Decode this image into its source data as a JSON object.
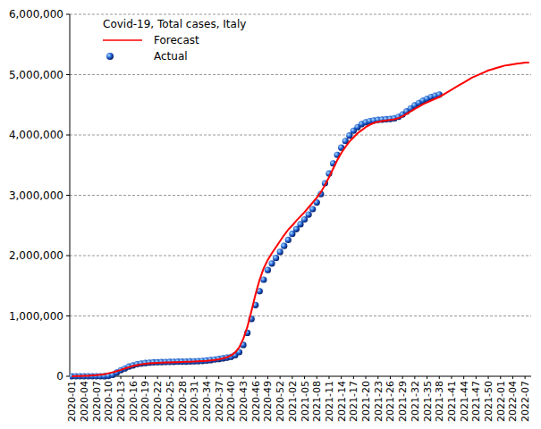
{
  "chart_data": {
    "type": "line",
    "title": "Covid-19, Total cases, Italy",
    "categories": [
      "2020-01",
      null,
      null,
      "2020-04",
      null,
      null,
      "2020-07",
      null,
      null,
      "2020-10",
      null,
      null,
      "2020-13",
      null,
      null,
      "2020-16",
      null,
      null,
      "2020-19",
      null,
      null,
      "2020-22",
      null,
      null,
      "2020-25",
      null,
      null,
      "2020-28",
      null,
      null,
      "2020-31",
      null,
      null,
      "2020-34",
      null,
      null,
      "2020-37",
      null,
      null,
      "2020-40",
      null,
      null,
      "2020-43",
      null,
      null,
      "2020-46",
      null,
      null,
      "2020-49",
      null,
      null,
      "2020-52",
      null,
      null,
      "2021-02",
      null,
      null,
      "2021-05",
      null,
      null,
      "2021-08",
      null,
      null,
      "2021-11",
      null,
      null,
      "2021-14",
      null,
      null,
      "2021-17",
      null,
      null,
      "2021-20",
      null,
      null,
      "2021-23",
      null,
      null,
      "2021-26",
      null,
      null,
      "2021-29",
      null,
      null,
      "2021-32",
      null,
      null,
      "2021-35",
      null,
      null,
      "2021-38",
      null,
      null,
      "2021-41",
      null,
      null,
      "2021-44",
      null,
      null,
      "2021-47",
      null,
      null,
      "2021-50",
      null,
      null,
      "2022-01",
      null,
      null,
      "2022-04",
      null,
      null,
      "2022-07",
      null
    ],
    "series": [
      {
        "name": "Forecast",
        "type": "line",
        "color": "#ff0000",
        "line_style": "solid",
        "values": [
          0,
          2000,
          4000,
          6000,
          9000,
          13000,
          18000,
          25000,
          35000,
          50000,
          65000,
          85000,
          105000,
          130000,
          150000,
          170000,
          185000,
          198000,
          208000,
          215000,
          220000,
          224000,
          227000,
          229000,
          231000,
          233000,
          235000,
          237000,
          239000,
          241000,
          244000,
          247000,
          251000,
          256000,
          263000,
          272000,
          283000,
          297000,
          315000,
          345000,
          395000,
          480000,
          620000,
          820000,
          1080000,
          1360000,
          1600000,
          1790000,
          1930000,
          2040000,
          2140000,
          2240000,
          2340000,
          2430000,
          2500000,
          2580000,
          2650000,
          2720000,
          2800000,
          2880000,
          2960000,
          3050000,
          3170000,
          3300000,
          3440000,
          3580000,
          3700000,
          3800000,
          3890000,
          3960000,
          4030000,
          4080000,
          4130000,
          4170000,
          4200000,
          4220000,
          4230000,
          4240000,
          4250000,
          4260000,
          4280000,
          4310000,
          4350000,
          4390000,
          4430000,
          4470000,
          4510000,
          4540000,
          4570000,
          4600000,
          4630000,
          4670000,
          4710000,
          4750000,
          4790000,
          4830000,
          4870000,
          4910000,
          4950000,
          4980000,
          5010000,
          5040000,
          5070000,
          5090000,
          5110000,
          5130000,
          5150000,
          5160000,
          5170000,
          5180000,
          5190000,
          5200000,
          5200000
        ]
      },
      {
        "name": "Actual",
        "type": "scatter",
        "color": "#1f5fd0",
        "marker": "circle",
        "values": [
          0,
          0,
          0,
          0,
          0,
          0,
          0,
          0,
          1000,
          7000,
          24000,
          60000,
          100000,
          130000,
          160000,
          180000,
          200000,
          210000,
          220000,
          226000,
          231000,
          233000,
          235000,
          237000,
          238000,
          240000,
          242000,
          243000,
          244000,
          246000,
          248000,
          251000,
          255000,
          260000,
          268000,
          278000,
          287000,
          297000,
          308000,
          322000,
          350000,
          400000,
          520000,
          720000,
          950000,
          1180000,
          1410000,
          1600000,
          1760000,
          1870000,
          1960000,
          2060000,
          2160000,
          2260000,
          2360000,
          2440000,
          2520000,
          2600000,
          2680000,
          2770000,
          2880000,
          3020000,
          3200000,
          3360000,
          3530000,
          3670000,
          3790000,
          3900000,
          3990000,
          4070000,
          4130000,
          4180000,
          4210000,
          4230000,
          4240000,
          4250000,
          4255000,
          4260000,
          4265000,
          4275000,
          4300000,
          4340000,
          4390000,
          4440000,
          4490000,
          4530000,
          4570000,
          4600000,
          4630000,
          4650000,
          4670000,
          null,
          null,
          null,
          null,
          null,
          null,
          null,
          null,
          null,
          null,
          null,
          null,
          null,
          null,
          null,
          null,
          null,
          null,
          null,
          null,
          null,
          null
        ]
      }
    ],
    "ylim": [
      0,
      6000000
    ],
    "yticks": [
      0,
      {
        "value": 1000000,
        "label": "1,000,000"
      },
      {
        "value": 2000000,
        "label": "2,000,000"
      },
      {
        "value": 3000000,
        "label": "3,000,000"
      },
      {
        "value": 4000000,
        "label": "4,000,000"
      },
      {
        "value": 5000000,
        "label": "5,000,000"
      },
      {
        "value": 6000000,
        "label": "6,000,000"
      }
    ],
    "grid": true,
    "legend": "upper left"
  }
}
